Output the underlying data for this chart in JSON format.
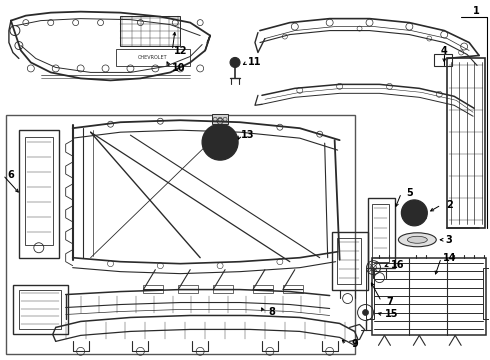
{
  "background_color": "#ffffff",
  "line_color": "#2a2a2a",
  "callout_color": "#000000",
  "figsize": [
    4.9,
    3.6
  ],
  "dpi": 100
}
